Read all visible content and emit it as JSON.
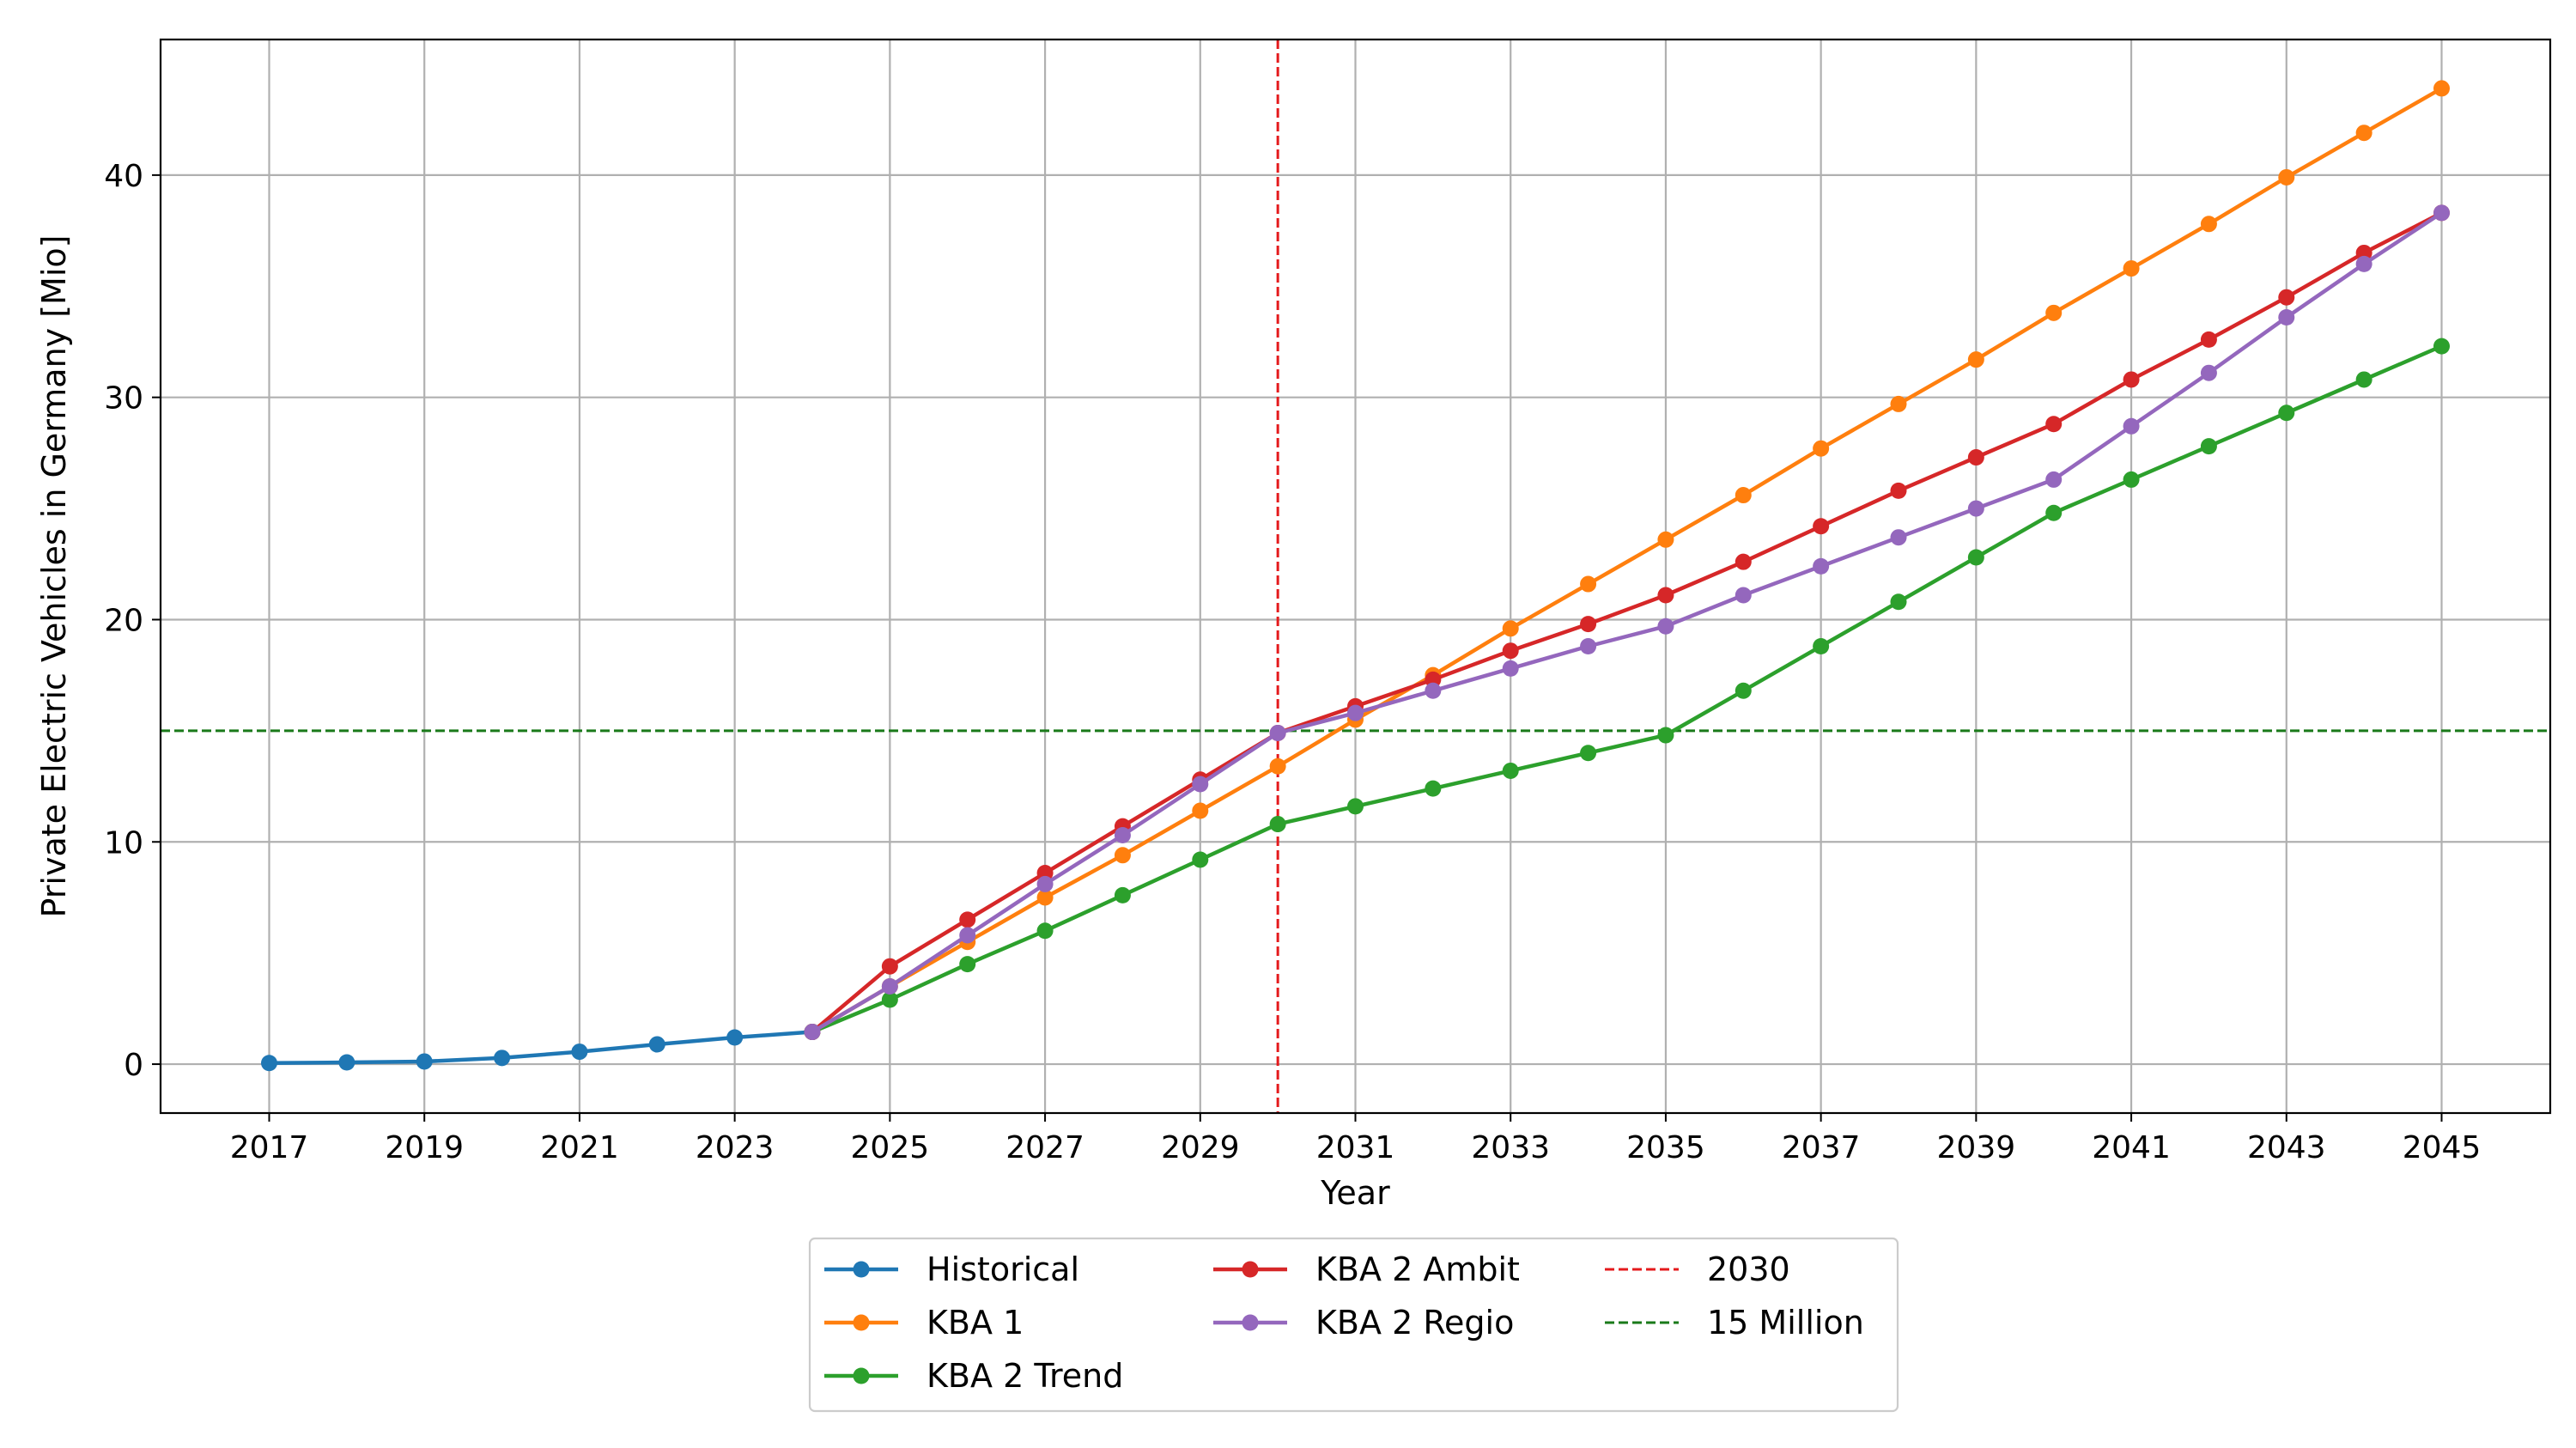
{
  "chart_data": {
    "type": "line",
    "xlabel": "Year",
    "ylabel": "Private Electric Vehicles in Germany [Mio]",
    "xlim": [
      2015.6,
      2046.4
    ],
    "ylim": [
      -2.2,
      46.1
    ],
    "xticks": [
      2017,
      2019,
      2021,
      2023,
      2025,
      2027,
      2029,
      2031,
      2033,
      2035,
      2037,
      2039,
      2041,
      2043,
      2045
    ],
    "yticks": [
      0,
      10,
      20,
      30,
      40
    ],
    "grid": true,
    "legend_position": "below plot, 3 columns",
    "series": [
      {
        "name": "Historical",
        "color": "#1f77b4",
        "marker": "circle",
        "x": [
          2017,
          2018,
          2019,
          2020,
          2021,
          2022,
          2023,
          2024
        ],
        "y": [
          0.05,
          0.08,
          0.12,
          0.28,
          0.56,
          0.89,
          1.2,
          1.45
        ]
      },
      {
        "name": "KBA 1",
        "color": "#ff7f0e",
        "marker": "circle",
        "x": [
          2024,
          2025,
          2026,
          2027,
          2028,
          2029,
          2030,
          2031,
          2032,
          2033,
          2034,
          2035,
          2036,
          2037,
          2038,
          2039,
          2040,
          2041,
          2042,
          2043,
          2044,
          2045
        ],
        "y": [
          1.45,
          3.5,
          5.5,
          7.5,
          9.4,
          11.4,
          13.4,
          15.5,
          17.5,
          19.6,
          21.6,
          23.6,
          25.6,
          27.7,
          29.7,
          31.7,
          33.8,
          35.8,
          37.8,
          39.9,
          41.9,
          43.9
        ]
      },
      {
        "name": "KBA 2 Trend",
        "color": "#2ca02c",
        "marker": "circle",
        "x": [
          2024,
          2025,
          2026,
          2027,
          2028,
          2029,
          2030,
          2031,
          2032,
          2033,
          2034,
          2035,
          2036,
          2037,
          2038,
          2039,
          2040,
          2041,
          2042,
          2043,
          2044,
          2045
        ],
        "y": [
          1.45,
          2.9,
          4.5,
          6.0,
          7.6,
          9.2,
          10.8,
          11.6,
          12.4,
          13.2,
          14.0,
          14.8,
          16.8,
          18.8,
          20.8,
          22.8,
          24.8,
          26.3,
          27.8,
          29.3,
          30.8,
          32.3
        ]
      },
      {
        "name": "KBA 2 Ambit",
        "color": "#d62728",
        "marker": "circle",
        "x": [
          2024,
          2025,
          2026,
          2027,
          2028,
          2029,
          2030,
          2031,
          2032,
          2033,
          2034,
          2035,
          2036,
          2037,
          2038,
          2039,
          2040,
          2041,
          2042,
          2043,
          2044,
          2045
        ],
        "y": [
          1.45,
          4.4,
          6.5,
          8.6,
          10.7,
          12.8,
          14.9,
          16.1,
          17.3,
          18.6,
          19.8,
          21.1,
          22.6,
          24.2,
          25.8,
          27.3,
          28.8,
          30.8,
          32.6,
          34.5,
          36.5,
          38.3
        ]
      },
      {
        "name": "KBA 2 Regio",
        "color": "#9467bd",
        "marker": "circle",
        "x": [
          2024,
          2025,
          2026,
          2027,
          2028,
          2029,
          2030,
          2031,
          2032,
          2033,
          2034,
          2035,
          2036,
          2037,
          2038,
          2039,
          2040,
          2041,
          2042,
          2043,
          2044,
          2045
        ],
        "y": [
          1.45,
          3.5,
          5.8,
          8.1,
          10.3,
          12.6,
          14.9,
          15.8,
          16.8,
          17.8,
          18.8,
          19.7,
          21.1,
          22.4,
          23.7,
          25.0,
          26.3,
          28.7,
          31.1,
          33.6,
          36.0,
          38.3
        ]
      }
    ],
    "reference_lines": [
      {
        "name": "2030",
        "orientation": "vertical",
        "value": 2030,
        "color": "#e41a1c",
        "style": "dashed"
      },
      {
        "name": "15 Million",
        "orientation": "horizontal",
        "value": 15,
        "color": "#1a7a1a",
        "style": "dashed"
      }
    ],
    "legend_columns": [
      [
        "Historical",
        "KBA 1",
        "KBA 2 Trend"
      ],
      [
        "KBA 2 Ambit",
        "KBA 2 Regio"
      ],
      [
        "2030",
        "15 Million"
      ]
    ]
  }
}
